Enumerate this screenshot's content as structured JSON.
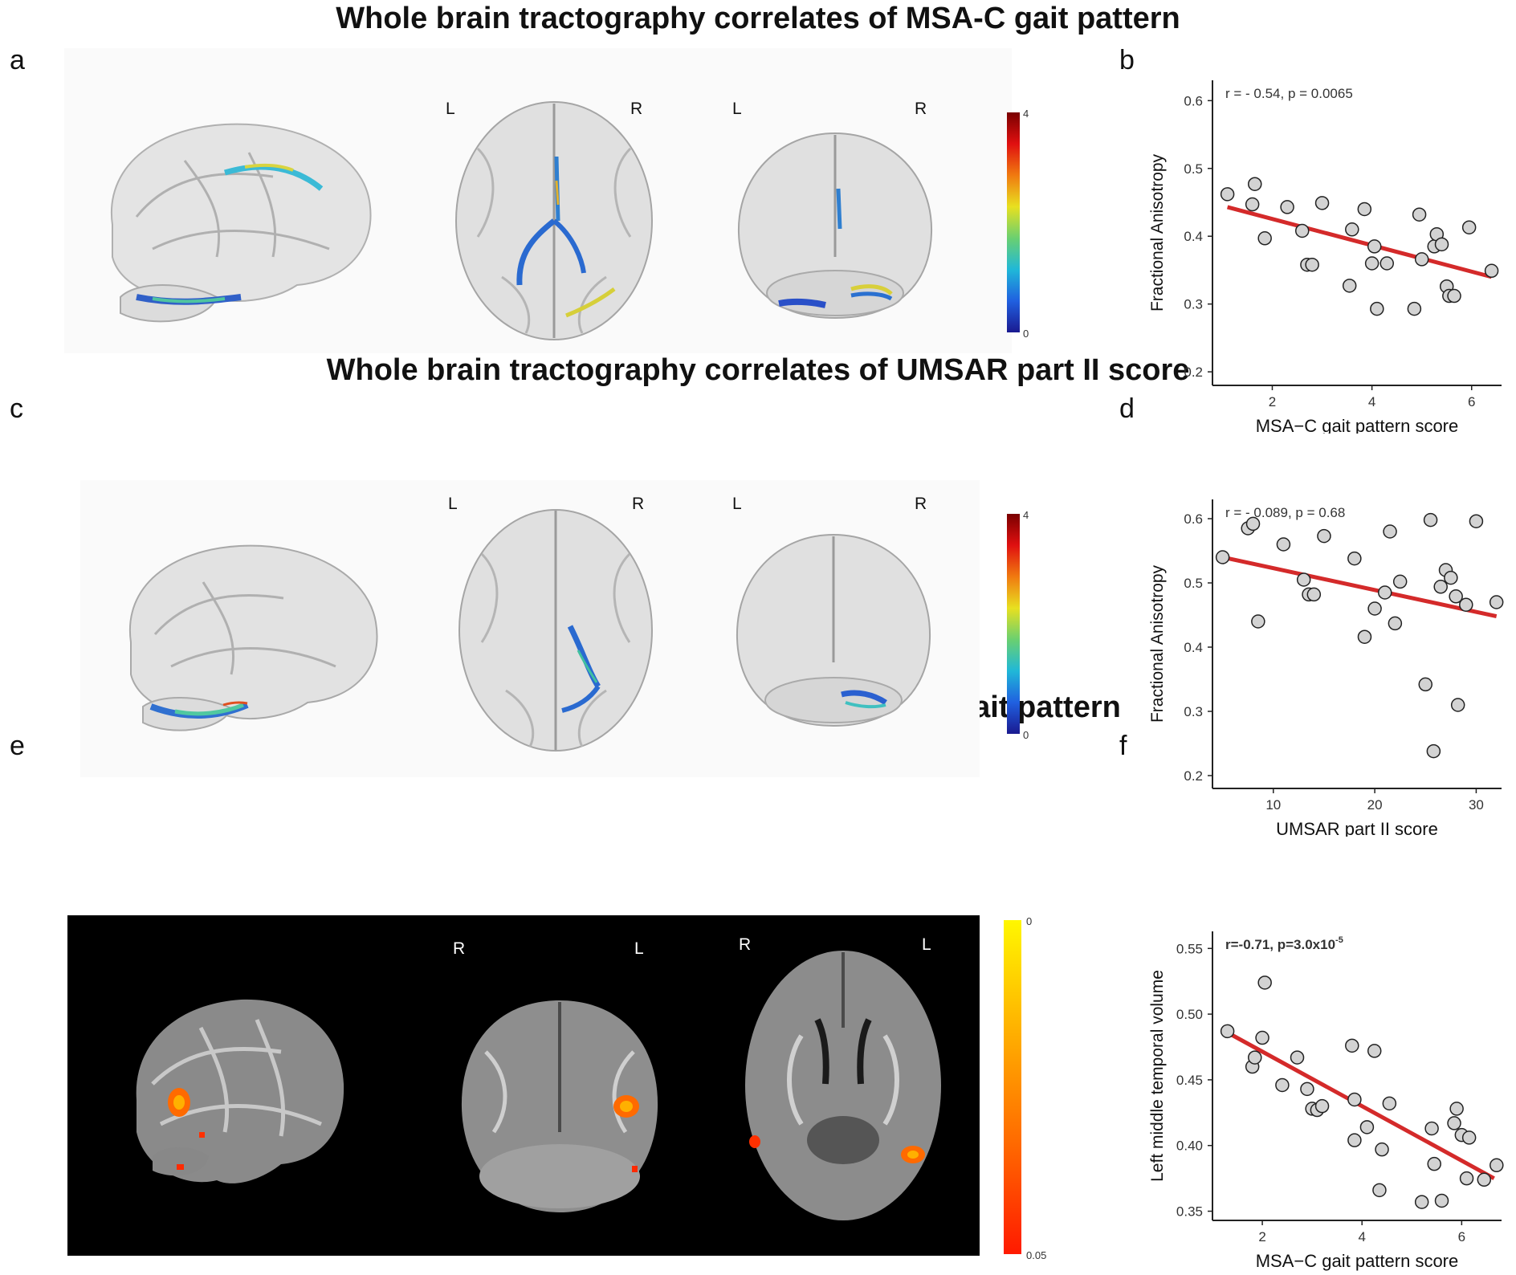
{
  "titles": {
    "t1": "Whole brain tractography correlates of MSA-C gait pattern",
    "t2": "Whole brain tractography correlates of UMSAR part II score",
    "t3": "Whole brain VBM correlates of MSA-C gait pattern"
  },
  "panels": {
    "a": "a",
    "b": "b",
    "c": "c",
    "d": "d",
    "e": "e",
    "f": "f"
  },
  "orientation": {
    "row_a": [
      "L",
      "R",
      "L",
      "R"
    ],
    "row_c": [
      "L",
      "R",
      "L",
      "R"
    ],
    "row_e": [
      "R",
      "L",
      "R",
      "L"
    ]
  },
  "colorbars": {
    "a": {
      "max": "4",
      "min": "0"
    },
    "c": {
      "max": "4",
      "min": "0"
    },
    "e": {
      "top": "0",
      "bottom": "0.05"
    }
  },
  "colors": {
    "fit_line": "#d42a2a",
    "point_fill": "#d3d3d3",
    "point_stroke": "#222222",
    "vbm_hot": "#ff6a00"
  },
  "chart_data": [
    {
      "id": "b",
      "type": "scatter",
      "annotation": "r = - 0.54, p = 0.0065",
      "xlabel": "MSA−C gait pattern score",
      "ylabel": "Fractional Anisotropy",
      "xlim": [
        0.8,
        6.6
      ],
      "ylim": [
        0.18,
        0.63
      ],
      "xticks": [
        2,
        4,
        6
      ],
      "yticks": [
        0.2,
        0.3,
        0.4,
        0.5,
        0.6
      ],
      "ytick_labels": [
        "0.2",
        "0.3",
        "0.4",
        "0.5",
        "0.6"
      ],
      "points": [
        [
          1.1,
          0.462
        ],
        [
          1.6,
          0.447
        ],
        [
          1.65,
          0.477
        ],
        [
          1.85,
          0.397
        ],
        [
          2.3,
          0.443
        ],
        [
          2.6,
          0.408
        ],
        [
          2.7,
          0.358
        ],
        [
          2.8,
          0.358
        ],
        [
          3.0,
          0.449
        ],
        [
          3.55,
          0.327
        ],
        [
          3.6,
          0.41
        ],
        [
          3.85,
          0.44
        ],
        [
          4.0,
          0.36
        ],
        [
          4.05,
          0.385
        ],
        [
          4.1,
          0.293
        ],
        [
          4.3,
          0.36
        ],
        [
          4.85,
          0.293
        ],
        [
          4.95,
          0.432
        ],
        [
          5.0,
          0.366
        ],
        [
          5.25,
          0.385
        ],
        [
          5.3,
          0.403
        ],
        [
          5.4,
          0.388
        ],
        [
          5.5,
          0.326
        ],
        [
          5.55,
          0.312
        ],
        [
          5.65,
          0.312
        ],
        [
          5.95,
          0.413
        ],
        [
          6.4,
          0.349
        ]
      ],
      "fit": [
        [
          1.1,
          0.443
        ],
        [
          6.4,
          0.34
        ]
      ]
    },
    {
      "id": "d",
      "type": "scatter",
      "annotation": "r = - 0.089, p = 0.68",
      "xlabel": "UMSAR part II score",
      "ylabel": "Fractional Anisotropy",
      "xlim": [
        4,
        32.5
      ],
      "ylim": [
        0.18,
        0.63
      ],
      "xticks": [
        10,
        20,
        30
      ],
      "yticks": [
        0.2,
        0.3,
        0.4,
        0.5,
        0.6
      ],
      "ytick_labels": [
        "0.2",
        "0.3",
        "0.4",
        "0.5",
        "0.6"
      ],
      "points": [
        [
          5,
          0.54
        ],
        [
          7.5,
          0.585
        ],
        [
          8,
          0.592
        ],
        [
          8.5,
          0.44
        ],
        [
          11,
          0.56
        ],
        [
          13,
          0.505
        ],
        [
          13.5,
          0.482
        ],
        [
          14,
          0.482
        ],
        [
          15,
          0.573
        ],
        [
          18,
          0.538
        ],
        [
          19,
          0.416
        ],
        [
          20,
          0.46
        ],
        [
          21,
          0.485
        ],
        [
          21.5,
          0.58
        ],
        [
          22,
          0.437
        ],
        [
          22.5,
          0.502
        ],
        [
          25,
          0.342
        ],
        [
          25.5,
          0.598
        ],
        [
          25.8,
          0.238
        ],
        [
          26.5,
          0.494
        ],
        [
          27,
          0.52
        ],
        [
          27.5,
          0.508
        ],
        [
          28,
          0.479
        ],
        [
          28.2,
          0.31
        ],
        [
          29,
          0.466
        ],
        [
          30,
          0.596
        ],
        [
          32,
          0.47
        ]
      ],
      "fit": [
        [
          5,
          0.54
        ],
        [
          32,
          0.448
        ]
      ]
    },
    {
      "id": "f",
      "type": "scatter",
      "annotation": "r=-0.71, p=3.0x10",
      "annotation_sup": "-5",
      "xlabel": "MSA−C gait pattern score",
      "ylabel": "Left middle temporal volume",
      "xlim": [
        1.0,
        6.8
      ],
      "ylim": [
        0.343,
        0.563
      ],
      "xticks": [
        2,
        4,
        6
      ],
      "yticks": [
        0.35,
        0.4,
        0.45,
        0.5,
        0.55
      ],
      "ytick_labels": [
        "0.35",
        "0.40",
        "0.45",
        "0.50",
        "0.55"
      ],
      "points": [
        [
          1.3,
          0.487
        ],
        [
          1.8,
          0.46
        ],
        [
          1.85,
          0.467
        ],
        [
          2.0,
          0.482
        ],
        [
          2.05,
          0.524
        ],
        [
          2.4,
          0.446
        ],
        [
          2.7,
          0.467
        ],
        [
          2.9,
          0.443
        ],
        [
          3.0,
          0.428
        ],
        [
          3.1,
          0.427
        ],
        [
          3.2,
          0.43
        ],
        [
          3.8,
          0.476
        ],
        [
          3.85,
          0.435
        ],
        [
          3.85,
          0.404
        ],
        [
          4.1,
          0.414
        ],
        [
          4.25,
          0.472
        ],
        [
          4.4,
          0.397
        ],
        [
          4.35,
          0.366
        ],
        [
          4.55,
          0.432
        ],
        [
          5.2,
          0.357
        ],
        [
          5.4,
          0.413
        ],
        [
          5.45,
          0.386
        ],
        [
          5.6,
          0.358
        ],
        [
          5.85,
          0.417
        ],
        [
          5.9,
          0.428
        ],
        [
          6.0,
          0.408
        ],
        [
          6.1,
          0.375
        ],
        [
          6.15,
          0.406
        ],
        [
          6.45,
          0.374
        ],
        [
          6.7,
          0.385
        ]
      ],
      "fit": [
        [
          1.3,
          0.486
        ],
        [
          6.65,
          0.375
        ]
      ]
    }
  ]
}
